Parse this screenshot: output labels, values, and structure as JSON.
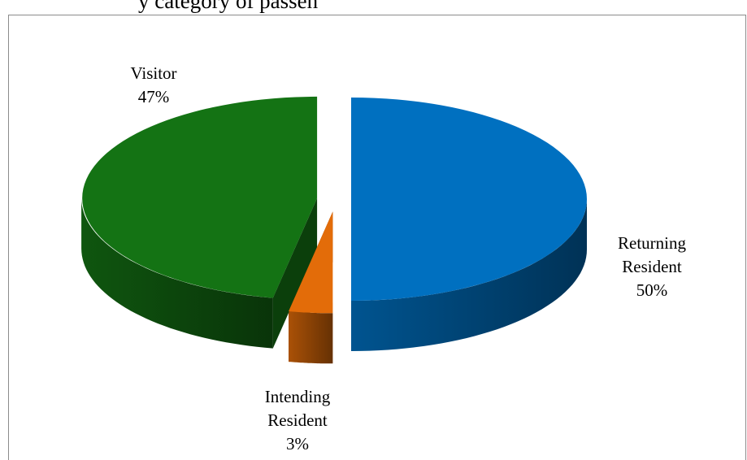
{
  "chart_data": {
    "type": "pie",
    "style": "3d exploded pie",
    "title": "y category of passen",
    "categories": [
      "Returning Resident",
      "Intending Resident",
      "Visitor"
    ],
    "values": [
      50,
      3,
      47
    ],
    "labels": [
      {
        "name_lines": [
          "Returning",
          "Resident"
        ],
        "percent": "50%"
      },
      {
        "name_lines": [
          "Intending",
          "Resident"
        ],
        "percent": "3%"
      },
      {
        "name_lines": [
          "Visitor"
        ],
        "percent": "47%"
      }
    ],
    "colors": [
      "#0070c0",
      "#e36c09",
      "#147314"
    ],
    "legend": "none"
  }
}
